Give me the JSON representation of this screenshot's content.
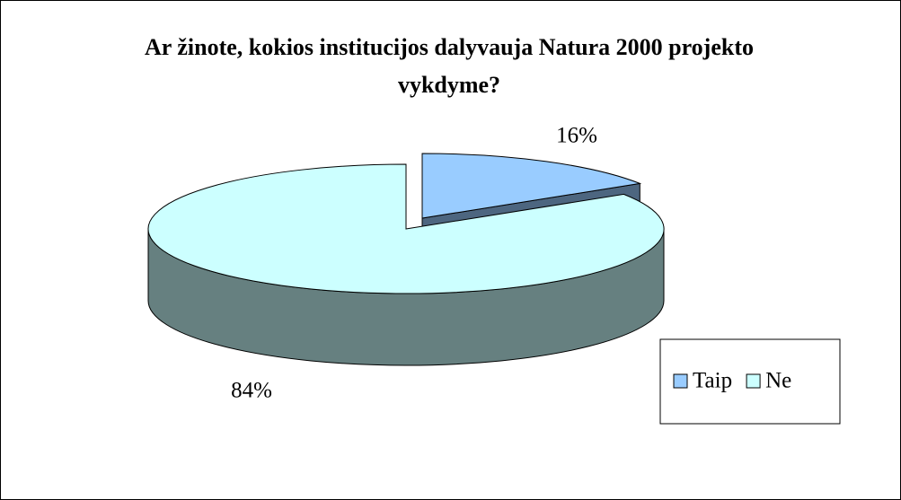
{
  "chart_data": {
    "type": "pie3d",
    "title": "Ar žinote, kokios institucijos dalyvauja Natura 2000 projekto vykdyme?",
    "categories": [
      "Taip",
      "Ne"
    ],
    "values": [
      16,
      84
    ],
    "value_labels": [
      "16%",
      "84%"
    ],
    "colors": [
      "#99ccff",
      "#ccffff"
    ],
    "side_colors": [
      "#4d6680",
      "#668080"
    ],
    "legend": "right"
  }
}
